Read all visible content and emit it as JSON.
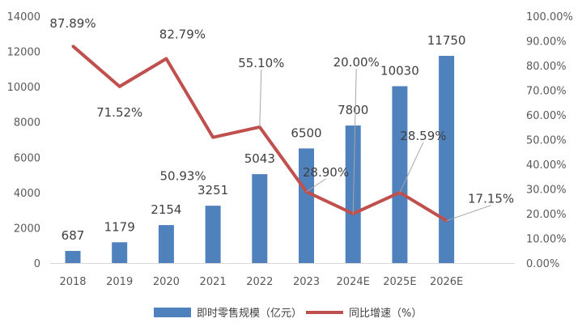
{
  "chart_data": {
    "type": "bar",
    "categories": [
      "2018",
      "2019",
      "2020",
      "2021",
      "2022",
      "2023",
      "2024E",
      "2025E",
      "2026E"
    ],
    "series": [
      {
        "name": "即时零售规模（亿元）",
        "type": "bar",
        "axis": "left",
        "values": [
          687,
          1179,
          2154,
          3251,
          5043,
          6500,
          7800,
          10030,
          11750
        ],
        "labels": [
          "687",
          "1179",
          "2154",
          "3251",
          "5043",
          "6500",
          "7800",
          "10030",
          "11750"
        ],
        "color": "#4f81bd"
      },
      {
        "name": "同比增速（%）",
        "type": "line",
        "axis": "right",
        "values": [
          87.89,
          71.52,
          82.79,
          50.93,
          55.1,
          28.9,
          20.0,
          28.59,
          17.15
        ],
        "labels": [
          "87.89%",
          "71.52%",
          "82.79%",
          "50.93%",
          "55.10%",
          "28.90%",
          "20.00%",
          "28.59%",
          "17.15%"
        ],
        "color": "#c0504d"
      }
    ],
    "left_axis": {
      "ylim": [
        0,
        14000
      ],
      "ticks": [
        "0",
        "2000",
        "4000",
        "6000",
        "8000",
        "10000",
        "12000",
        "14000"
      ]
    },
    "right_axis": {
      "ylim": [
        0,
        100
      ],
      "ticks": [
        "0.00%",
        "10.00%",
        "20.00%",
        "30.00%",
        "40.00%",
        "50.00%",
        "60.00%",
        "70.00%",
        "80.00%",
        "90.00%",
        "100.00%"
      ]
    },
    "legend_position": "bottom",
    "grid": false
  }
}
